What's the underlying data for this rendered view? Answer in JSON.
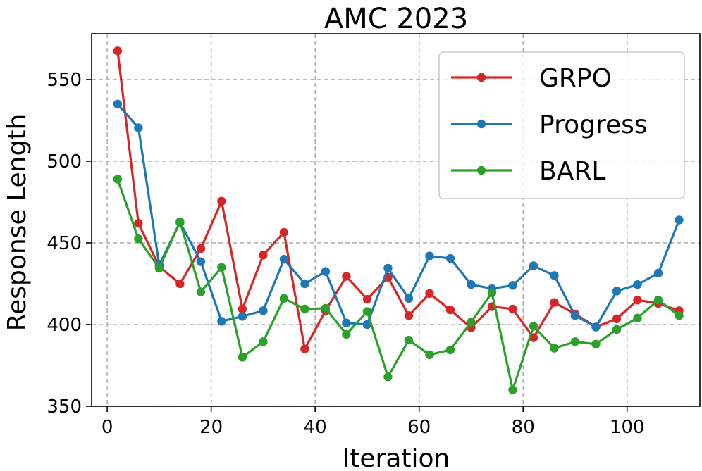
{
  "chart_data": {
    "type": "line",
    "title": "AMC 2023",
    "xlabel": "Iteration",
    "ylabel": "Response Length",
    "xlim": [
      -3,
      114
    ],
    "ylim": [
      350,
      578
    ],
    "xticks": [
      0,
      20,
      40,
      60,
      80,
      100
    ],
    "yticks": [
      350,
      400,
      450,
      500,
      550
    ],
    "grid": true,
    "legend_position": "top-right",
    "x": [
      2,
      6,
      10,
      14,
      18,
      22,
      26,
      30,
      34,
      38,
      42,
      46,
      50,
      54,
      58,
      62,
      66,
      70,
      74,
      78,
      82,
      86,
      90,
      94,
      98,
      102,
      106,
      110
    ],
    "series": [
      {
        "name": "GRPO",
        "color": "#d62728",
        "values": [
          567.5,
          462.0,
          435.5,
          425.0,
          446.5,
          475.5,
          409.5,
          442.5,
          456.5,
          385.0,
          408.5,
          429.5,
          415.5,
          429.0,
          405.5,
          419.0,
          409.0,
          398.0,
          411.0,
          409.5,
          392.0,
          413.5,
          406.5,
          398.5,
          403.5,
          415.0,
          413.0,
          408.5
        ]
      },
      {
        "name": "Progress",
        "color": "#1f77b4",
        "values": [
          535.0,
          520.5,
          436.5,
          462.5,
          438.5,
          402.0,
          405.0,
          408.5,
          440.0,
          425.0,
          432.5,
          401.0,
          400.0,
          434.5,
          416.0,
          442.0,
          440.5,
          424.5,
          422.0,
          424.0,
          436.0,
          430.0,
          405.5,
          398.5,
          420.5,
          424.5,
          431.5,
          464.0
        ]
      },
      {
        "name": "BARL",
        "color": "#2ca02c",
        "values": [
          489.0,
          452.5,
          434.5,
          463.0,
          420.0,
          435.0,
          380.0,
          389.5,
          416.0,
          409.5,
          410.0,
          394.0,
          408.0,
          368.0,
          390.5,
          381.5,
          384.5,
          401.5,
          419.5,
          360.0,
          399.0,
          385.5,
          389.5,
          388.0,
          397.0,
          404.0,
          415.0,
          405.5
        ]
      }
    ]
  }
}
